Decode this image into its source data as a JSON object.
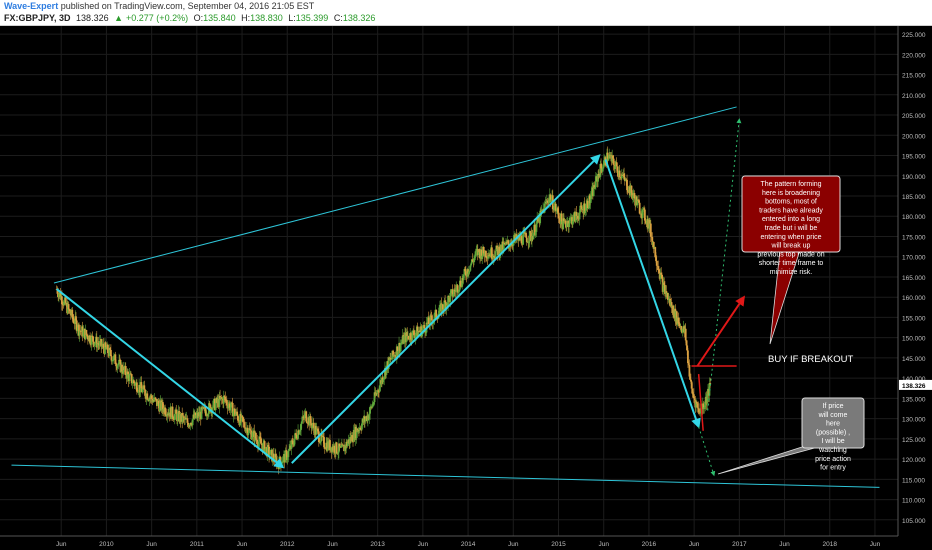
{
  "header": {
    "author": "Wave-Expert",
    "published_text": "published on TradingView.com, September 04, 2016 21:05 EST",
    "symbol": "FX:GBPJPY, 3D",
    "last": "138.326",
    "change": "+0.277 (+0.2%)",
    "open_label": "O:",
    "open_value": "135.840",
    "high_label": "H:",
    "high_value": "138.830",
    "low_label": "L:",
    "low_value": "135.399",
    "close_label": "C:",
    "close_value": "138.326"
  },
  "colors": {
    "background": "#000000",
    "candle_up": "#5fa83a",
    "candle_down": "#d9a040",
    "trendline": "#2ec5d8",
    "arrow": "#33d6e6",
    "red": "#e01818",
    "note_red_bg": "#8b0000",
    "note_gray_bg": "#7a7a7a",
    "grid": "#1c1c1c",
    "axis_text": "#bfbfbf"
  },
  "annotations": {
    "breakout_label": "BUY IF BREAKOUT",
    "note_red": "The pattern forming here is broadening bottoms, most of traders have already entered into a long trade but i will be entering when price will break up previous top made on shorter time frame to minimize risk.",
    "note_gray": "If price will come here (possible) , I will be watching price action for entry"
  },
  "chart_data": {
    "type": "candlestick",
    "symbol": "FX:GBPJPY",
    "timeframe": "3D",
    "x_ticks": [
      "Jun",
      "2010",
      "Jun",
      "2011",
      "Jun",
      "2012",
      "Jun",
      "2013",
      "Jun",
      "2014",
      "Jun",
      "2015",
      "Jun",
      "2016",
      "Jun",
      "2017",
      "Jun",
      "2018",
      "Jun"
    ],
    "y_ticks": [
      "225.000",
      "220.000",
      "215.000",
      "210.000",
      "205.000",
      "200.000",
      "195.000",
      "190.000",
      "185.000",
      "180.000",
      "175.000",
      "170.000",
      "165.000",
      "160.000",
      "155.000",
      "150.000",
      "145.000",
      "140.000",
      "135.000",
      "130.000",
      "125.000",
      "120.000",
      "115.000",
      "110.000",
      "105.000"
    ],
    "ylim": [
      101,
      227
    ],
    "current_price": "138.326",
    "price_path": [
      {
        "date": "2009.45",
        "price": 162
      },
      {
        "date": "2009.7",
        "price": 152
      },
      {
        "date": "2010.0",
        "price": 147
      },
      {
        "date": "2010.3",
        "price": 139
      },
      {
        "date": "2010.6",
        "price": 133
      },
      {
        "date": "2010.9",
        "price": 129
      },
      {
        "date": "2011.1",
        "price": 132
      },
      {
        "date": "2011.3",
        "price": 135
      },
      {
        "date": "2011.5",
        "price": 129
      },
      {
        "date": "2011.7",
        "price": 124
      },
      {
        "date": "2011.9",
        "price": 119
      },
      {
        "date": "2012.0",
        "price": 121
      },
      {
        "date": "2012.2",
        "price": 131
      },
      {
        "date": "2012.4",
        "price": 124
      },
      {
        "date": "2012.6",
        "price": 122
      },
      {
        "date": "2012.9",
        "price": 131
      },
      {
        "date": "2013.1",
        "price": 143
      },
      {
        "date": "2013.3",
        "price": 150
      },
      {
        "date": "2013.5",
        "price": 152
      },
      {
        "date": "2013.7",
        "price": 157
      },
      {
        "date": "2013.9",
        "price": 163
      },
      {
        "date": "2014.1",
        "price": 171
      },
      {
        "date": "2014.3",
        "price": 171
      },
      {
        "date": "2014.5",
        "price": 174
      },
      {
        "date": "2014.7",
        "price": 175
      },
      {
        "date": "2014.9",
        "price": 185
      },
      {
        "date": "2015.05",
        "price": 178
      },
      {
        "date": "2015.2",
        "price": 180
      },
      {
        "date": "2015.35",
        "price": 184
      },
      {
        "date": "2015.45",
        "price": 191
      },
      {
        "date": "2015.55",
        "price": 195
      },
      {
        "date": "2015.7",
        "price": 190
      },
      {
        "date": "2015.85",
        "price": 184
      },
      {
        "date": "2016.0",
        "price": 178
      },
      {
        "date": "2016.15",
        "price": 163
      },
      {
        "date": "2016.3",
        "price": 155
      },
      {
        "date": "2016.4",
        "price": 151
      },
      {
        "date": "2016.47",
        "price": 137
      },
      {
        "date": "2016.55",
        "price": 132
      },
      {
        "date": "2016.62",
        "price": 134
      },
      {
        "date": "2016.68",
        "price": 138
      }
    ],
    "upper_trendline": [
      {
        "date": "2009.42",
        "price": 163.5
      },
      {
        "date": "2016.97",
        "price": 207
      }
    ],
    "lower_trendline": [
      {
        "date": "2008.95",
        "price": 118.5
      },
      {
        "date": "2018.55",
        "price": 113
      }
    ],
    "wave_arrows": [
      {
        "from": {
          "date": "2009.45",
          "price": 162
        },
        "to": {
          "date": "2011.95",
          "price": 118
        }
      },
      {
        "from": {
          "date": "2012.05",
          "price": 119
        },
        "to": {
          "date": "2015.45",
          "price": 195
        }
      },
      {
        "from": {
          "date": "2015.52",
          "price": 194
        },
        "to": {
          "date": "2016.55",
          "price": 128
        }
      }
    ],
    "breakout_level": 143,
    "projection_up": {
      "from": {
        "date": "2016.65",
        "price": 132
      },
      "to": {
        "date": "2017.0",
        "price": 204
      }
    },
    "projection_down": {
      "from": {
        "date": "2016.55",
        "price": 128
      },
      "to": {
        "date": "2016.72",
        "price": 116
      }
    }
  }
}
